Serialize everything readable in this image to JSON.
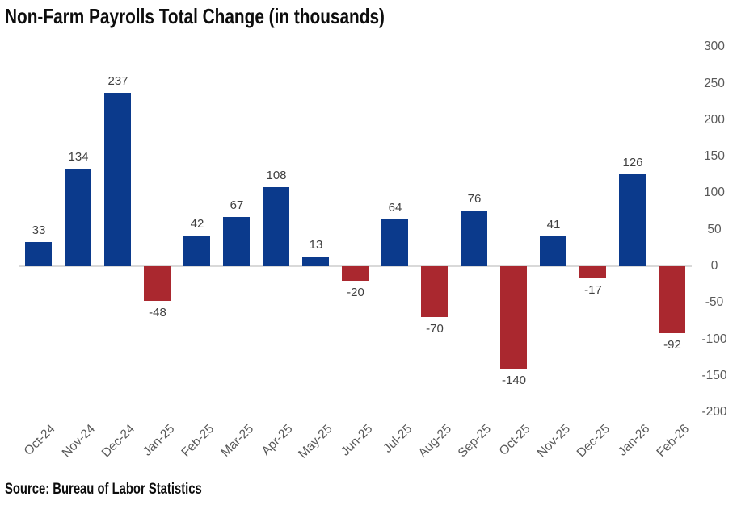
{
  "title": "Non-Farm Payrolls Total Change (in thousands)",
  "source": "Source: Bureau of Labor Statistics",
  "colors": {
    "bar_positive": "#0b3a8c",
    "bar_negative": "#aa282f",
    "axis_line": "#d9d9d9",
    "value_label": "#404040",
    "axis_label": "#595959",
    "title_text": "#0d0d0d"
  },
  "chart_data": {
    "type": "bar",
    "title": "Non-Farm Payrolls Total Change (in thousands)",
    "categories": [
      "Oct-24",
      "Nov-24",
      "Dec-24",
      "Jan-25",
      "Feb-25",
      "Mar-25",
      "Apr-25",
      "May-25",
      "Jun-25",
      "Jul-25",
      "Aug-25",
      "Sep-25",
      "Oct-25",
      "Nov-25",
      "Dec-25",
      "Jan-26",
      "Feb-26"
    ],
    "values": [
      33,
      134,
      237,
      -48,
      42,
      67,
      108,
      13,
      -20,
      64,
      -70,
      76,
      -140,
      41,
      -17,
      126,
      -92
    ],
    "xlabel": "",
    "ylabel": "",
    "ylim": [
      -200,
      300
    ],
    "y_tick_step": 50,
    "y_axis_side": "right",
    "grid": false,
    "legend": "none",
    "data_labels": true,
    "source": "Source: Bureau of Labor Statistics"
  }
}
